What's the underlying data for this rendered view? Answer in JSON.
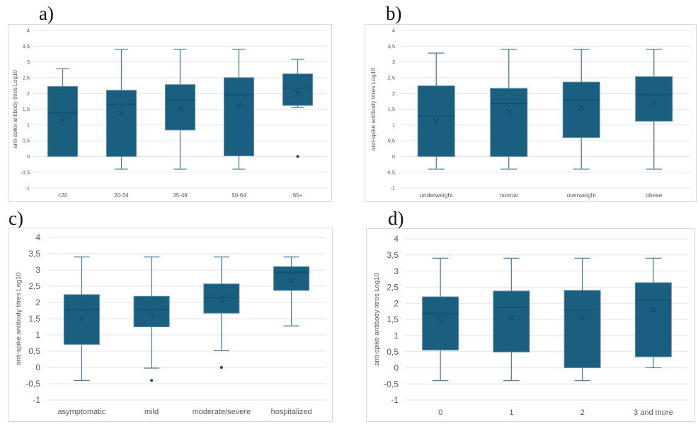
{
  "colors": {
    "box_fill": "#1a5f80",
    "box_edge": "#5b8ca8",
    "whisker": "#4f8099",
    "median": "#134a66",
    "mean_marker": "#134a66",
    "outlier": "#134a66",
    "grid": "#e3e3e3",
    "tick_text": "#595959"
  },
  "chart_data": [
    {
      "panel": "a)",
      "type": "box",
      "title": "",
      "xlabel": "",
      "ylabel": "anti-spike antibody titres Log10",
      "ylim": [
        -1,
        4
      ],
      "yticks": [
        "-1",
        "-0,5",
        "0",
        "0,5",
        "1",
        "1,5",
        "2",
        "2,5",
        "3",
        "3,5",
        "4"
      ],
      "ytick_values": [
        -1,
        -0.5,
        0,
        0.5,
        1,
        1.5,
        2,
        2.5,
        3,
        3.5,
        4
      ],
      "grid": true,
      "categories": [
        "<20",
        "20-34",
        "35-49",
        "50-64",
        "65+"
      ],
      "boxes": [
        {
          "min": 0,
          "q1": 0,
          "median": 1.38,
          "q3": 2.22,
          "max": 2.78,
          "mean": 1.15,
          "outliers": []
        },
        {
          "min": -0.4,
          "q1": 0,
          "median": 1.65,
          "q3": 2.1,
          "max": 3.4,
          "mean": 1.38,
          "outliers": []
        },
        {
          "min": -0.4,
          "q1": 0.84,
          "median": 1.78,
          "q3": 2.28,
          "max": 3.4,
          "mean": 1.53,
          "outliers": []
        },
        {
          "min": -0.4,
          "q1": 0.02,
          "median": 1.96,
          "q3": 2.5,
          "max": 3.4,
          "mean": 1.62,
          "outliers": []
        },
        {
          "min": 1.55,
          "q1": 1.62,
          "median": 2.17,
          "q3": 2.62,
          "max": 3.08,
          "mean": 2.02,
          "outliers": [
            0
          ]
        }
      ]
    },
    {
      "panel": "b)",
      "type": "box",
      "title": "",
      "xlabel": "",
      "ylabel": "anti-spike antibody titres Log10",
      "ylim": [
        -1,
        4
      ],
      "yticks": [
        "-1",
        "-0,5",
        "0",
        "0,5",
        "1",
        "1,5",
        "2",
        "2,5",
        "3",
        "3,5",
        "4"
      ],
      "ytick_values": [
        -1,
        -0.5,
        0,
        0.5,
        1,
        1.5,
        2,
        2.5,
        3,
        3.5,
        4
      ],
      "grid": true,
      "categories": [
        "underweight",
        "normal",
        "overweight",
        "obese"
      ],
      "boxes": [
        {
          "min": -0.4,
          "q1": 0,
          "median": 1.28,
          "q3": 2.24,
          "max": 3.28,
          "mean": 1.12,
          "outliers": []
        },
        {
          "min": -0.4,
          "q1": 0,
          "median": 1.68,
          "q3": 2.16,
          "max": 3.4,
          "mean": 1.42,
          "outliers": []
        },
        {
          "min": -0.4,
          "q1": 0.6,
          "median": 1.8,
          "q3": 2.36,
          "max": 3.4,
          "mean": 1.55,
          "outliers": []
        },
        {
          "min": -0.4,
          "q1": 1.12,
          "median": 1.96,
          "q3": 2.53,
          "max": 3.4,
          "mean": 1.7,
          "outliers": []
        }
      ]
    },
    {
      "panel": "c)",
      "type": "box",
      "title": "",
      "xlabel": "",
      "ylabel": "anti-spike antibody titres Log10",
      "ylim": [
        -1,
        4
      ],
      "yticks": [
        "-1",
        "-0,5",
        "0",
        "0,5",
        "1",
        "1,5",
        "2",
        "2,5",
        "3",
        "3,5",
        "4"
      ],
      "ytick_values": [
        -1,
        -0.5,
        0,
        0.5,
        1,
        1.5,
        2,
        2.5,
        3,
        3.5,
        4
      ],
      "grid": true,
      "categories": [
        "asymptomatic",
        "mild",
        "moderate/severe",
        "hospitalized"
      ],
      "boxes": [
        {
          "min": -0.4,
          "q1": 0.71,
          "median": 1.78,
          "q3": 2.24,
          "max": 3.4,
          "mean": 1.5,
          "outliers": []
        },
        {
          "min": -0.02,
          "q1": 1.25,
          "median": 1.78,
          "q3": 2.19,
          "max": 3.4,
          "mean": 1.6,
          "outliers": [
            -0.4
          ]
        },
        {
          "min": 0.52,
          "q1": 1.67,
          "median": 2.16,
          "q3": 2.57,
          "max": 3.4,
          "mean": 2.07,
          "outliers": [
            0
          ]
        },
        {
          "min": 1.28,
          "q1": 2.37,
          "median": 2.93,
          "q3": 3.1,
          "max": 3.4,
          "mean": 2.67,
          "outliers": []
        }
      ]
    },
    {
      "panel": "d)",
      "type": "box",
      "title": "",
      "xlabel": "",
      "ylabel": "anti-spike antibody titres Log10",
      "ylim": [
        -1,
        4
      ],
      "yticks": [
        "-1",
        "-0,5",
        "0",
        "0,5",
        "1",
        "1,5",
        "2",
        "2,5",
        "3",
        "3,5",
        "4"
      ],
      "ytick_values": [
        -1,
        -0.5,
        0,
        0.5,
        1,
        1.5,
        2,
        2.5,
        3,
        3.5,
        4
      ],
      "grid": true,
      "categories": [
        "0",
        "1",
        "2",
        "3 and more"
      ],
      "boxes": [
        {
          "min": -0.4,
          "q1": 0.55,
          "median": 1.68,
          "q3": 2.2,
          "max": 3.4,
          "mean": 1.45,
          "outliers": []
        },
        {
          "min": -0.4,
          "q1": 0.49,
          "median": 1.86,
          "q3": 2.38,
          "max": 3.4,
          "mean": 1.55,
          "outliers": []
        },
        {
          "min": -0.4,
          "q1": 0,
          "median": 1.8,
          "q3": 2.4,
          "max": 3.4,
          "mean": 1.57,
          "outliers": []
        },
        {
          "min": 0,
          "q1": 0.34,
          "median": 2.1,
          "q3": 2.64,
          "max": 3.4,
          "mean": 1.79,
          "outliers": []
        }
      ]
    }
  ]
}
